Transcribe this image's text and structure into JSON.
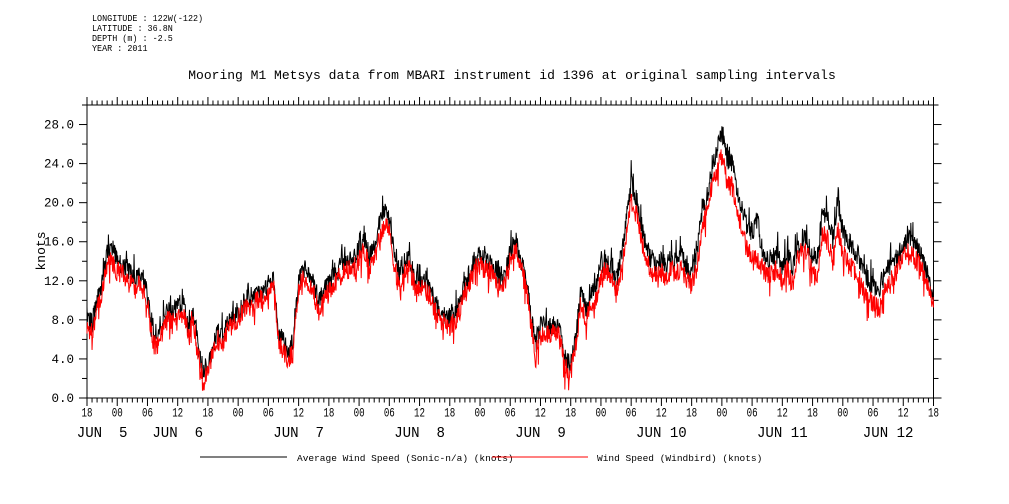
{
  "meta": {
    "lines": [
      "LONGITUDE : 122W(-122)",
      "LATITUDE : 36.8N",
      "DEPTH (m) : -2.5",
      "YEAR : 2011"
    ]
  },
  "title": "Mooring M1 Metsys data from MBARI instrument id 1396 at original sampling intervals",
  "legend": {
    "entries": [
      {
        "label": "Average Wind Speed (Sonic-n/a) (knots)",
        "color": "#000000"
      },
      {
        "label": "Wind Speed (Windbird) (knots)",
        "color": "#ff0000"
      }
    ]
  },
  "chart_data": {
    "type": "line",
    "title": "Mooring M1 Metsys data from MBARI instrument id 1396 at original sampling intervals",
    "ylabel": "knots",
    "ylim": [
      0,
      30
    ],
    "ytick_major_step": 4,
    "ytick_minor_step": 2,
    "ytick_labels": [
      "0.0",
      "4.0",
      "8.0",
      "12.0",
      "16.0",
      "20.0",
      "24.0",
      "28.0"
    ],
    "x_start": "2011-06-05 18:00",
    "x_end": "2011-06-12 18:00",
    "x_span_hours": 168,
    "xtick_major_hours": 6,
    "xtick_minor_hours": 1,
    "hour_label_cycle": [
      "18",
      "00",
      "06",
      "12"
    ],
    "date_labels": [
      {
        "label": "JUN  5",
        "center_hour": 3
      },
      {
        "label": "JUN  6",
        "center_hour": 18
      },
      {
        "label": "JUN  7",
        "center_hour": 42
      },
      {
        "label": "JUN  8",
        "center_hour": 66
      },
      {
        "label": "JUN  9",
        "center_hour": 90
      },
      {
        "label": "JUN 10",
        "center_hour": 114
      },
      {
        "label": "JUN 11",
        "center_hour": 138
      },
      {
        "label": "JUN 12",
        "center_hour": 159
      }
    ],
    "sample_interval_hours": 1,
    "series": [
      {
        "name": "Average Wind Speed (Sonic-n/a) (knots)",
        "color": "#000000",
        "vmin": 1.3,
        "vmax": 28.1,
        "values": [
          8.3,
          7.6,
          9.8,
          12.0,
          15.0,
          15.6,
          13.8,
          13.6,
          13.2,
          12.4,
          12.5,
          12.4,
          10.5,
          6.2,
          5.8,
          7.8,
          8.8,
          9.0,
          9.4,
          10.0,
          7.4,
          9.0,
          6.0,
          2.2,
          3.4,
          5.4,
          6.8,
          6.4,
          7.6,
          8.4,
          8.8,
          9.6,
          10.2,
          10.0,
          11.0,
          10.8,
          11.7,
          12.4,
          6.5,
          5.8,
          4.4,
          6.0,
          12.2,
          13.2,
          12.8,
          11.6,
          9.6,
          10.8,
          11.8,
          12.4,
          13.2,
          13.8,
          14.0,
          14.2,
          15.4,
          16.6,
          14.4,
          15.6,
          17.6,
          19.0,
          18.2,
          15.0,
          12.4,
          13.8,
          14.4,
          12.4,
          12.2,
          12.0,
          11.4,
          9.8,
          8.8,
          8.6,
          8.4,
          8.6,
          10.0,
          11.6,
          12.9,
          14.0,
          14.6,
          14.2,
          13.8,
          13.2,
          12.0,
          12.6,
          15.0,
          16.2,
          14.4,
          12.6,
          9.0,
          5.2,
          7.6,
          7.4,
          7.2,
          7.8,
          6.6,
          3.8,
          3.4,
          6.0,
          11.0,
          8.8,
          10.4,
          11.2,
          13.6,
          14.2,
          13.4,
          11.6,
          14.5,
          18.0,
          22.0,
          20.5,
          17.5,
          15.5,
          14.0,
          13.5,
          14.0,
          13.4,
          14.4,
          13.6,
          14.8,
          13.0,
          12.6,
          14.5,
          18.9,
          20.5,
          23.0,
          25.5,
          27.2,
          24.5,
          24.0,
          21.5,
          19.5,
          17.5,
          16.5,
          18.5,
          15.0,
          14.2,
          14.4,
          14.8,
          13.4,
          14.8,
          13.2,
          15.4,
          16.4,
          16.0,
          14.0,
          14.4,
          19.2,
          18.4,
          16.2,
          20.4,
          17.0,
          16.0,
          15.4,
          14.6,
          13.0,
          12.2,
          11.4,
          11.0,
          12.0,
          13.4,
          13.6,
          14.6,
          15.6,
          16.4,
          15.6,
          15.2,
          13.8,
          12.2,
          10.5
        ]
      },
      {
        "name": "Wind Speed (Windbird) (knots)",
        "color": "#ff0000",
        "vmin": 0.8,
        "vmax": 26.0,
        "values": [
          7.5,
          6.8,
          9.0,
          10.8,
          13.6,
          14.2,
          12.9,
          12.7,
          12.3,
          11.5,
          11.6,
          11.5,
          9.7,
          5.6,
          5.2,
          7.0,
          8.0,
          8.2,
          8.6,
          9.2,
          6.7,
          8.3,
          5.4,
          1.4,
          2.7,
          4.7,
          6.1,
          5.7,
          6.9,
          7.7,
          8.1,
          8.9,
          9.5,
          9.3,
          10.3,
          10.1,
          11.0,
          11.5,
          5.8,
          5.1,
          3.7,
          5.3,
          11.3,
          12.3,
          11.9,
          10.7,
          8.7,
          9.9,
          10.9,
          11.5,
          12.3,
          12.9,
          13.1,
          13.3,
          14.2,
          15.4,
          13.2,
          14.4,
          16.4,
          17.6,
          17.0,
          13.5,
          11.2,
          12.8,
          13.4,
          11.5,
          11.3,
          11.1,
          10.5,
          8.9,
          7.9,
          7.7,
          7.5,
          7.7,
          9.1,
          10.7,
          12.0,
          13.1,
          13.7,
          13.3,
          12.9,
          12.3,
          11.1,
          11.7,
          14.1,
          15.3,
          13.5,
          11.7,
          8.0,
          4.2,
          6.8,
          6.6,
          6.4,
          7.0,
          5.8,
          3.0,
          2.6,
          5.2,
          10.0,
          7.8,
          9.4,
          10.2,
          12.6,
          13.2,
          12.4,
          10.6,
          13.1,
          16.6,
          20.2,
          19.1,
          16.1,
          14.4,
          12.9,
          12.4,
          12.9,
          12.3,
          13.3,
          12.5,
          13.7,
          11.9,
          11.5,
          13.0,
          17.4,
          19.0,
          21.5,
          23.1,
          24.9,
          22.1,
          21.6,
          19.5,
          17.5,
          15.5,
          14.5,
          14.2,
          13.4,
          12.6,
          12.8,
          13.2,
          11.8,
          13.2,
          11.6,
          14.2,
          15.2,
          14.8,
          12.4,
          12.8,
          16.8,
          16.2,
          14.0,
          17.4,
          14.8,
          13.8,
          13.2,
          12.8,
          11.2,
          10.4,
          9.6,
          9.2,
          10.2,
          12.2,
          12.4,
          13.4,
          14.4,
          15.2,
          14.4,
          14.0,
          12.8,
          11.2,
          9.5
        ]
      }
    ],
    "noise": {
      "seed": 1396,
      "substeps_per_hour": 12,
      "amplitude": 1.05,
      "spike_chance": 0.12,
      "spike_amplitude": 1.7
    },
    "grid": false,
    "legend_position": "bottom"
  }
}
